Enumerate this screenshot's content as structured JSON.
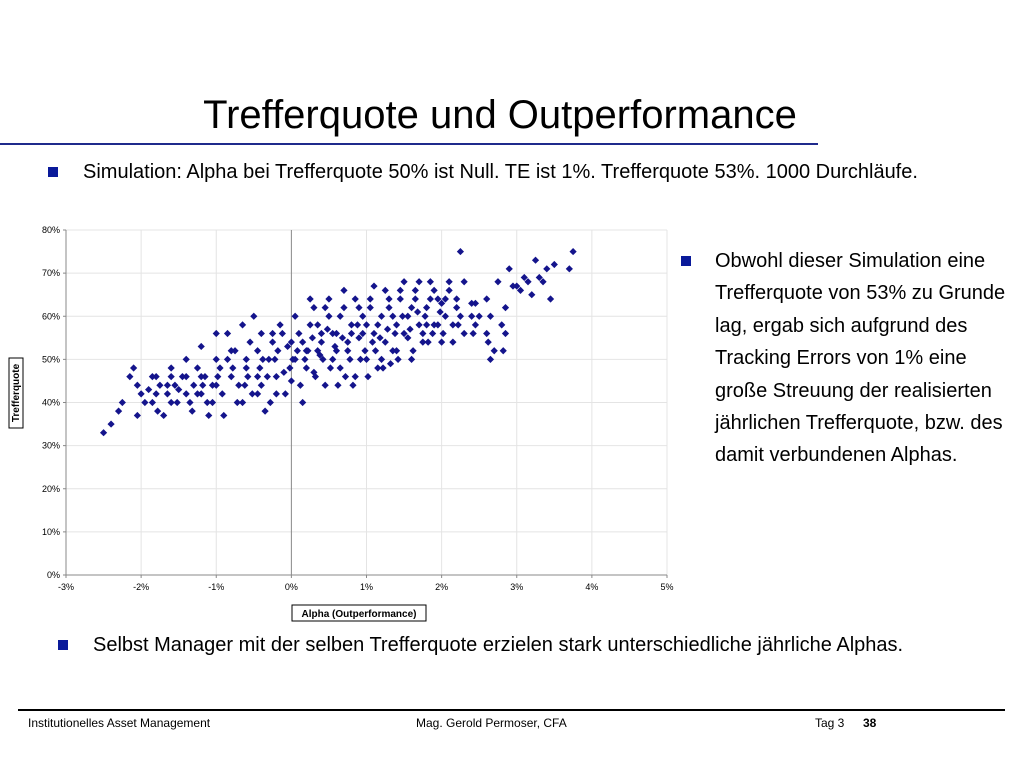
{
  "slide": {
    "title": "Trefferquote und Outperformance",
    "bullets": [
      "Simulation: Alpha bei Trefferquote 50% ist Null. TE ist 1%. Trefferquote 53%. 1000 Durchläufe.",
      "Selbst Manager mit der selben Trefferquote erzielen stark unterschiedliche jährliche Alphas."
    ],
    "side_bullet": "Obwohl dieser Simulation eine Trefferquote von 53% zu Grunde lag, ergab sich aufgrund des Tracking Errors von 1% eine große Streuung der realisierten jährlichen Trefferquote, bzw. des damit verbundenen Alphas.",
    "accent_color": "#0a1a9a"
  },
  "footer": {
    "left": "Institutionelles Asset Management",
    "center": "Mag. Gerold Permoser, CFA",
    "tag": "Tag 3",
    "page": "38"
  },
  "chart_data": {
    "type": "scatter",
    "xlabel": "Alpha (Outperformance)",
    "ylabel": "Trefferquote",
    "xlim": [
      -0.03,
      0.05
    ],
    "ylim": [
      0,
      0.8
    ],
    "x_ticks": [
      -0.03,
      -0.02,
      -0.01,
      0,
      0.01,
      0.02,
      0.03,
      0.04,
      0.05
    ],
    "x_tick_labels": [
      "-3%",
      "-2%",
      "-1%",
      "0%",
      "1%",
      "2%",
      "3%",
      "4%",
      "5%"
    ],
    "y_ticks": [
      0,
      0.1,
      0.2,
      0.3,
      0.4,
      0.5,
      0.6,
      0.7,
      0.8
    ],
    "y_tick_labels": [
      "0%",
      "10%",
      "20%",
      "30%",
      "40%",
      "50%",
      "60%",
      "70%",
      "80%"
    ],
    "grid": true,
    "marker_color": "#14148c",
    "points": [
      [
        -0.025,
        0.33
      ],
      [
        -0.024,
        0.35
      ],
      [
        -0.023,
        0.38
      ],
      [
        -0.0225,
        0.4
      ],
      [
        -0.0215,
        0.46
      ],
      [
        -0.021,
        0.48
      ],
      [
        -0.0205,
        0.37
      ],
      [
        -0.019,
        0.43
      ],
      [
        -0.0185,
        0.4
      ],
      [
        -0.018,
        0.46
      ],
      [
        -0.0178,
        0.38
      ],
      [
        -0.0175,
        0.44
      ],
      [
        -0.017,
        0.37
      ],
      [
        -0.0165,
        0.42
      ],
      [
        -0.016,
        0.46
      ],
      [
        -0.0155,
        0.44
      ],
      [
        -0.015,
        0.43
      ],
      [
        -0.014,
        0.46
      ],
      [
        -0.0135,
        0.4
      ],
      [
        -0.013,
        0.44
      ],
      [
        -0.0125,
        0.48
      ],
      [
        -0.012,
        0.42
      ],
      [
        -0.0115,
        0.46
      ],
      [
        -0.011,
        0.37
      ],
      [
        -0.0105,
        0.4
      ],
      [
        -0.01,
        0.44
      ],
      [
        -0.0095,
        0.48
      ],
      [
        -0.009,
        0.37
      ],
      [
        -0.0085,
        0.5
      ],
      [
        -0.008,
        0.46
      ],
      [
        -0.0075,
        0.52
      ],
      [
        -0.007,
        0.44
      ],
      [
        -0.0065,
        0.4
      ],
      [
        -0.006,
        0.48
      ],
      [
        -0.0055,
        0.54
      ],
      [
        -0.005,
        0.6
      ],
      [
        -0.0045,
        0.46
      ],
      [
        -0.004,
        0.56
      ],
      [
        -0.0035,
        0.38
      ],
      [
        -0.003,
        0.5
      ],
      [
        -0.0025,
        0.56
      ],
      [
        -0.002,
        0.42
      ],
      [
        -0.0015,
        0.58
      ],
      [
        -0.001,
        0.47
      ],
      [
        -0.0005,
        0.53
      ],
      [
        0.0,
        0.45
      ],
      [
        0.0005,
        0.5
      ],
      [
        0.001,
        0.56
      ],
      [
        0.0015,
        0.4
      ],
      [
        0.002,
        0.52
      ],
      [
        0.0025,
        0.64
      ],
      [
        0.003,
        0.47
      ],
      [
        0.0035,
        0.58
      ],
      [
        0.004,
        0.54
      ],
      [
        0.0045,
        0.44
      ],
      [
        0.005,
        0.6
      ],
      [
        0.0055,
        0.5
      ],
      [
        0.006,
        0.56
      ],
      [
        0.0065,
        0.48
      ],
      [
        0.007,
        0.62
      ],
      [
        0.0075,
        0.52
      ],
      [
        0.008,
        0.58
      ],
      [
        0.0085,
        0.46
      ],
      [
        0.009,
        0.55
      ],
      [
        0.0095,
        0.6
      ],
      [
        0.01,
        0.5
      ],
      [
        0.0105,
        0.64
      ],
      [
        0.011,
        0.56
      ],
      [
        0.0115,
        0.48
      ],
      [
        0.012,
        0.6
      ],
      [
        0.0125,
        0.54
      ],
      [
        0.013,
        0.62
      ],
      [
        0.0135,
        0.52
      ],
      [
        0.014,
        0.58
      ],
      [
        0.0145,
        0.66
      ],
      [
        0.015,
        0.56
      ],
      [
        0.0155,
        0.6
      ],
      [
        0.016,
        0.5
      ],
      [
        0.0165,
        0.64
      ],
      [
        0.017,
        0.58
      ],
      [
        0.0175,
        0.54
      ],
      [
        0.018,
        0.62
      ],
      [
        0.0185,
        0.68
      ],
      [
        0.019,
        0.58
      ],
      [
        0.0195,
        0.64
      ],
      [
        0.02,
        0.54
      ],
      [
        0.0205,
        0.6
      ],
      [
        0.021,
        0.66
      ],
      [
        0.0215,
        0.58
      ],
      [
        0.022,
        0.62
      ],
      [
        0.0225,
        0.75
      ],
      [
        0.023,
        0.56
      ],
      [
        0.024,
        0.63
      ],
      [
        0.0245,
        0.58
      ],
      [
        0.025,
        0.6
      ],
      [
        0.026,
        0.56
      ],
      [
        0.0265,
        0.5
      ],
      [
        0.027,
        0.52
      ],
      [
        0.028,
        0.58
      ],
      [
        0.0285,
        0.62
      ],
      [
        0.029,
        0.71
      ],
      [
        0.03,
        0.67
      ],
      [
        0.0305,
        0.66
      ],
      [
        0.031,
        0.69
      ],
      [
        0.032,
        0.65
      ],
      [
        0.0325,
        0.73
      ],
      [
        0.033,
        0.69
      ],
      [
        0.034,
        0.71
      ],
      [
        0.0345,
        0.64
      ],
      [
        0.035,
        0.72
      ],
      [
        0.037,
        0.71
      ],
      [
        0.0375,
        0.75
      ],
      [
        -0.0045,
        0.42
      ],
      [
        -0.0012,
        0.56
      ],
      [
        0.0008,
        0.52
      ],
      [
        0.0028,
        0.55
      ],
      [
        0.0048,
        0.57
      ],
      [
        0.0068,
        0.55
      ],
      [
        0.0088,
        0.58
      ],
      [
        0.0108,
        0.54
      ],
      [
        0.0128,
        0.57
      ],
      [
        0.0148,
        0.6
      ],
      [
        0.0168,
        0.61
      ],
      [
        0.0188,
        0.56
      ],
      [
        -0.0022,
        0.5
      ],
      [
        -0.0002,
        0.48
      ],
      [
        0.0018,
        0.5
      ],
      [
        0.0038,
        0.51
      ],
      [
        0.0058,
        0.53
      ],
      [
        0.0078,
        0.5
      ],
      [
        0.0098,
        0.52
      ],
      [
        0.0118,
        0.55
      ],
      [
        0.0138,
        0.56
      ],
      [
        0.0158,
        0.57
      ],
      [
        0.0178,
        0.6
      ],
      [
        0.0198,
        0.61
      ],
      [
        -0.0062,
        0.44
      ],
      [
        -0.0042,
        0.48
      ],
      [
        -0.0032,
        0.46
      ],
      [
        -0.0008,
        0.42
      ],
      [
        0.0012,
        0.44
      ],
      [
        0.0032,
        0.46
      ],
      [
        0.0052,
        0.48
      ],
      [
        0.0072,
        0.46
      ],
      [
        0.0092,
        0.5
      ],
      [
        0.0112,
        0.52
      ],
      [
        0.0132,
        0.49
      ],
      [
        -0.0152,
        0.4
      ],
      [
        -0.0132,
        0.38
      ],
      [
        -0.0112,
        0.4
      ],
      [
        -0.0092,
        0.42
      ],
      [
        -0.0072,
        0.4
      ],
      [
        -0.0052,
        0.42
      ],
      [
        -0.0028,
        0.4
      ],
      [
        0.0005,
        0.6
      ],
      [
        0.0025,
        0.58
      ],
      [
        0.0045,
        0.62
      ],
      [
        0.0065,
        0.6
      ],
      [
        0.0085,
        0.64
      ],
      [
        0.0105,
        0.62
      ],
      [
        0.0125,
        0.66
      ],
      [
        0.0145,
        0.64
      ],
      [
        0.0165,
        0.66
      ],
      [
        0.0185,
        0.64
      ],
      [
        0.0205,
        0.64
      ],
      [
        0.0225,
        0.6
      ],
      [
        0.0245,
        0.63
      ],
      [
        0.0265,
        0.6
      ],
      [
        0.0285,
        0.56
      ],
      [
        -0.0085,
        0.56
      ],
      [
        -0.0065,
        0.58
      ],
      [
        -0.0045,
        0.52
      ],
      [
        -0.0025,
        0.54
      ],
      [
        0.0015,
        0.54
      ],
      [
        0.0035,
        0.52
      ],
      [
        0.0055,
        0.56
      ],
      [
        0.0075,
        0.54
      ],
      [
        0.0095,
        0.56
      ],
      [
        0.0115,
        0.58
      ],
      [
        0.0135,
        0.6
      ],
      [
        0.0155,
        0.55
      ],
      [
        0.0175,
        0.56
      ],
      [
        0.0195,
        0.58
      ],
      [
        0.0215,
        0.54
      ],
      [
        -0.018,
        0.42
      ],
      [
        -0.016,
        0.4
      ],
      [
        -0.014,
        0.42
      ],
      [
        -0.012,
        0.46
      ],
      [
        -0.01,
        0.5
      ],
      [
        -0.008,
        0.52
      ],
      [
        -0.006,
        0.5
      ],
      [
        -0.004,
        0.44
      ],
      [
        -0.002,
        0.46
      ],
      [
        0.0,
        0.54
      ],
      [
        0.002,
        0.48
      ],
      [
        0.004,
        0.56
      ],
      [
        0.006,
        0.52
      ],
      [
        0.008,
        0.56
      ],
      [
        0.01,
        0.58
      ],
      [
        0.012,
        0.5
      ],
      [
        0.014,
        0.52
      ],
      [
        0.016,
        0.62
      ],
      [
        0.018,
        0.58
      ],
      [
        0.02,
        0.63
      ],
      [
        0.022,
        0.64
      ],
      [
        0.024,
        0.6
      ],
      [
        0.026,
        0.64
      ],
      [
        -0.01,
        0.56
      ],
      [
        -0.012,
        0.53
      ],
      [
        -0.014,
        0.5
      ],
      [
        -0.016,
        0.48
      ],
      [
        -0.02,
        0.42
      ],
      [
        -0.0195,
        0.4
      ],
      [
        0.003,
        0.62
      ],
      [
        0.005,
        0.64
      ],
      [
        0.007,
        0.66
      ],
      [
        0.009,
        0.62
      ],
      [
        0.011,
        0.67
      ],
      [
        0.013,
        0.64
      ],
      [
        0.015,
        0.68
      ],
      [
        0.017,
        0.68
      ],
      [
        0.019,
        0.66
      ],
      [
        0.021,
        0.68
      ],
      [
        0.023,
        0.68
      ],
      [
        0.0275,
        0.68
      ],
      [
        0.0295,
        0.67
      ],
      [
        0.0315,
        0.68
      ],
      [
        0.0335,
        0.68
      ],
      [
        0.0102,
        0.46
      ],
      [
        0.0122,
        0.48
      ],
      [
        0.0142,
        0.5
      ],
      [
        0.0162,
        0.52
      ],
      [
        0.0182,
        0.54
      ],
      [
        0.0202,
        0.56
      ],
      [
        0.0222,
        0.58
      ],
      [
        0.0242,
        0.56
      ],
      [
        0.0262,
        0.54
      ],
      [
        0.0282,
        0.52
      ],
      [
        0.0062,
        0.44
      ],
      [
        0.0082,
        0.44
      ],
      [
        -0.0118,
        0.44
      ],
      [
        -0.0098,
        0.46
      ],
      [
        -0.0078,
        0.48
      ],
      [
        -0.0058,
        0.46
      ],
      [
        -0.0038,
        0.5
      ],
      [
        -0.0018,
        0.52
      ],
      [
        0.0002,
        0.5
      ],
      [
        0.0022,
        0.52
      ],
      [
        0.0042,
        0.5
      ],
      [
        -0.0205,
        0.44
      ],
      [
        -0.0185,
        0.46
      ],
      [
        -0.0165,
        0.44
      ],
      [
        -0.0145,
        0.46
      ],
      [
        -0.0125,
        0.42
      ],
      [
        -0.0105,
        0.44
      ]
    ]
  }
}
